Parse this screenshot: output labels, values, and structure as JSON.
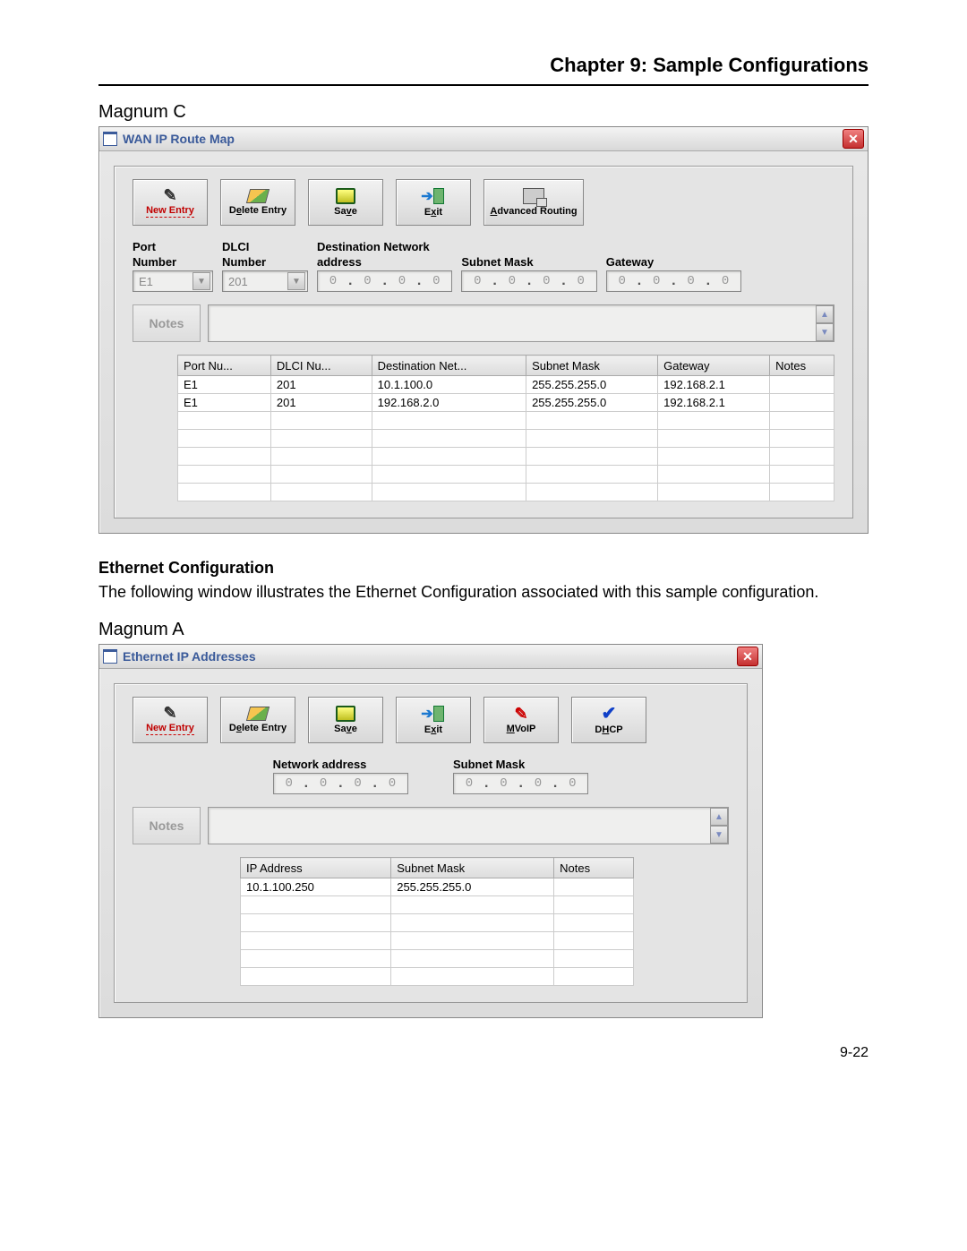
{
  "chapter_title": "Chapter 9: Sample Configurations",
  "section1_label": "Magnum C",
  "win1": {
    "title": "WAN IP Route Map",
    "toolbar": {
      "new": "New Entry",
      "delete_pre": "D",
      "delete_u": "e",
      "delete_post": "lete Entry",
      "save_pre": "Sa",
      "save_u": "v",
      "save_post": "e",
      "exit_pre": "E",
      "exit_u": "x",
      "exit_post": "it",
      "adv_pre": "",
      "adv_u": "A",
      "adv_post": "dvanced Routing"
    },
    "labels": {
      "port1": "Port",
      "port2": "Number",
      "dlci1": "DLCI",
      "dlci2": "Number",
      "dest1": "Destination Network",
      "dest2": "address",
      "subnet": "Subnet Mask",
      "gateway": "Gateway"
    },
    "sel_port": "E1",
    "sel_dlci": "201",
    "oct": "0",
    "notes_label": "Notes",
    "cols": [
      "Port Nu...",
      "DLCI Nu...",
      "Destination Net...",
      "Subnet Mask",
      "Gateway",
      "Notes"
    ],
    "rows": [
      [
        "E1",
        "201",
        "10.1.100.0",
        "255.255.255.0",
        "192.168.2.1",
        ""
      ],
      [
        "E1",
        "201",
        "192.168.2.0",
        "255.255.255.0",
        "192.168.2.1",
        ""
      ]
    ]
  },
  "eth_heading": "Ethernet Configuration",
  "eth_body": "The following window illustrates the Ethernet Configuration associated with this sample configuration.",
  "section2_label": "Magnum A",
  "win2": {
    "title": "Ethernet IP Addresses",
    "toolbar": {
      "new": "New Entry",
      "delete_pre": "D",
      "delete_u": "e",
      "delete_post": "lete Entry",
      "save_pre": "Sa",
      "save_u": "v",
      "save_post": "e",
      "exit_pre": "E",
      "exit_u": "x",
      "exit_post": "it",
      "mvoip_pre": "",
      "mvoip_u": "M",
      "mvoip_post": "VoIP",
      "dhcp_pre": "D",
      "dhcp_u": "H",
      "dhcp_post": "CP"
    },
    "labels": {
      "net": "Network address",
      "subnet": "Subnet Mask"
    },
    "oct": "0",
    "notes_label": "Notes",
    "cols": [
      "IP Address",
      "Subnet Mask",
      "Notes"
    ],
    "rows": [
      [
        "10.1.100.250",
        "255.255.255.0",
        ""
      ]
    ]
  },
  "page_num": "9-22"
}
